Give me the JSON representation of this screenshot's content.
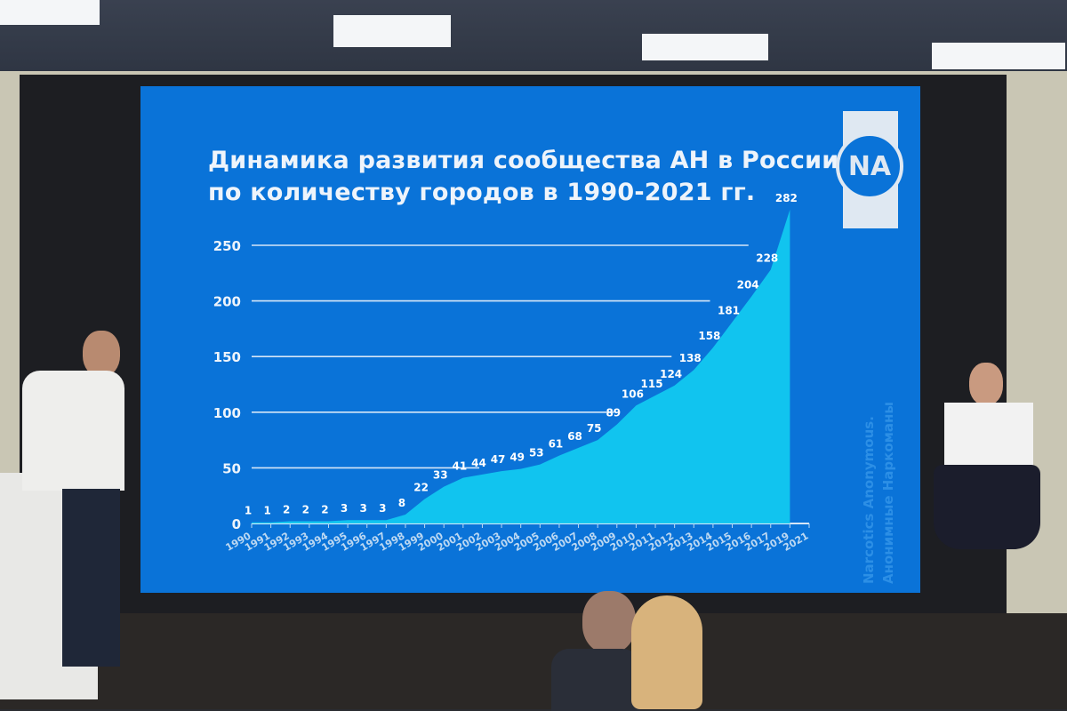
{
  "slide": {
    "title_line1": "Динамика развития сообщества АН в России",
    "title_line2": "по количеству городов в 1990-2021 гг.",
    "logo_text": "NA",
    "side_text_1": "Narcotics Anonymous.",
    "side_text_2": "Анонимные Наркоманы",
    "background_color": "#0a73d8",
    "area_color": "#12c8f0"
  },
  "chart_data": {
    "type": "area",
    "title": "Динамика развития сообщества АН в России по количеству городов в 1990-2021 гг.",
    "categories": [
      "1990",
      "1991",
      "1992",
      "1993",
      "1994",
      "1995",
      "1996",
      "1997",
      "1998",
      "1999",
      "2000",
      "2001",
      "2002",
      "2003",
      "2004",
      "2005",
      "2006",
      "2007",
      "2008",
      "2009",
      "2010",
      "2011",
      "2012",
      "2013",
      "2014",
      "2015",
      "2016",
      "2017",
      "2019",
      "2021"
    ],
    "values": [
      1,
      1,
      2,
      2,
      2,
      3,
      3,
      3,
      8,
      22,
      33,
      41,
      44,
      47,
      49,
      53,
      61,
      68,
      75,
      89,
      106,
      115,
      124,
      138,
      158,
      181,
      204,
      228,
      282,
      null
    ],
    "yticks": [
      0,
      50,
      100,
      150,
      200,
      250
    ],
    "ylim": [
      0,
      250
    ],
    "grid": true,
    "legend": "none"
  }
}
